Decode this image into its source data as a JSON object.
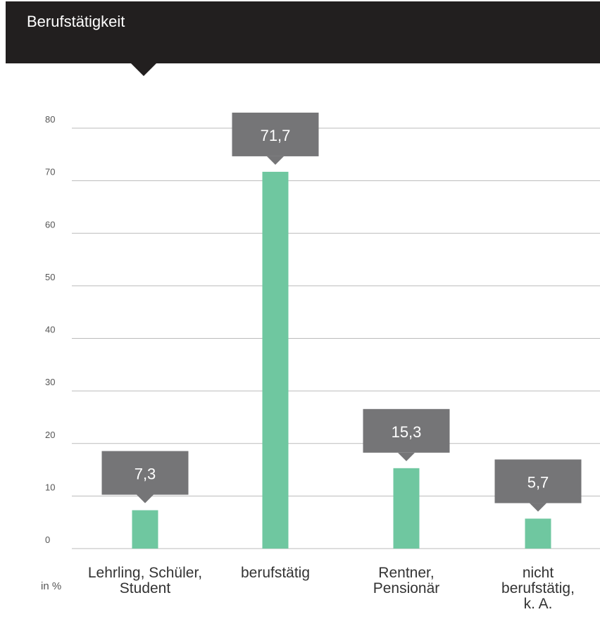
{
  "header": {
    "title": "Berufstätigkeit"
  },
  "colors": {
    "header_bg": "#221f1f",
    "bar": "#6fc7a0",
    "label_box": "#757577",
    "grid": "#bbbbbb"
  },
  "unit_label": "in %",
  "chart_data": {
    "type": "bar",
    "title": "Berufstätigkeit",
    "categories": [
      [
        "Lehrling, Schüler,",
        "Student"
      ],
      [
        "berufstätig"
      ],
      [
        "Rentner,",
        "Pensionär"
      ],
      [
        "nicht",
        "berufstätig,",
        "k. A."
      ]
    ],
    "values": [
      7.3,
      71.7,
      15.3,
      5.7
    ],
    "value_labels": [
      "7,3",
      "71,7",
      "15,3",
      "5,7"
    ],
    "yticks": [
      0,
      10,
      20,
      30,
      40,
      50,
      60,
      70,
      80
    ],
    "ylim": [
      0,
      80
    ],
    "ylabel": "in %",
    "grid": true
  }
}
